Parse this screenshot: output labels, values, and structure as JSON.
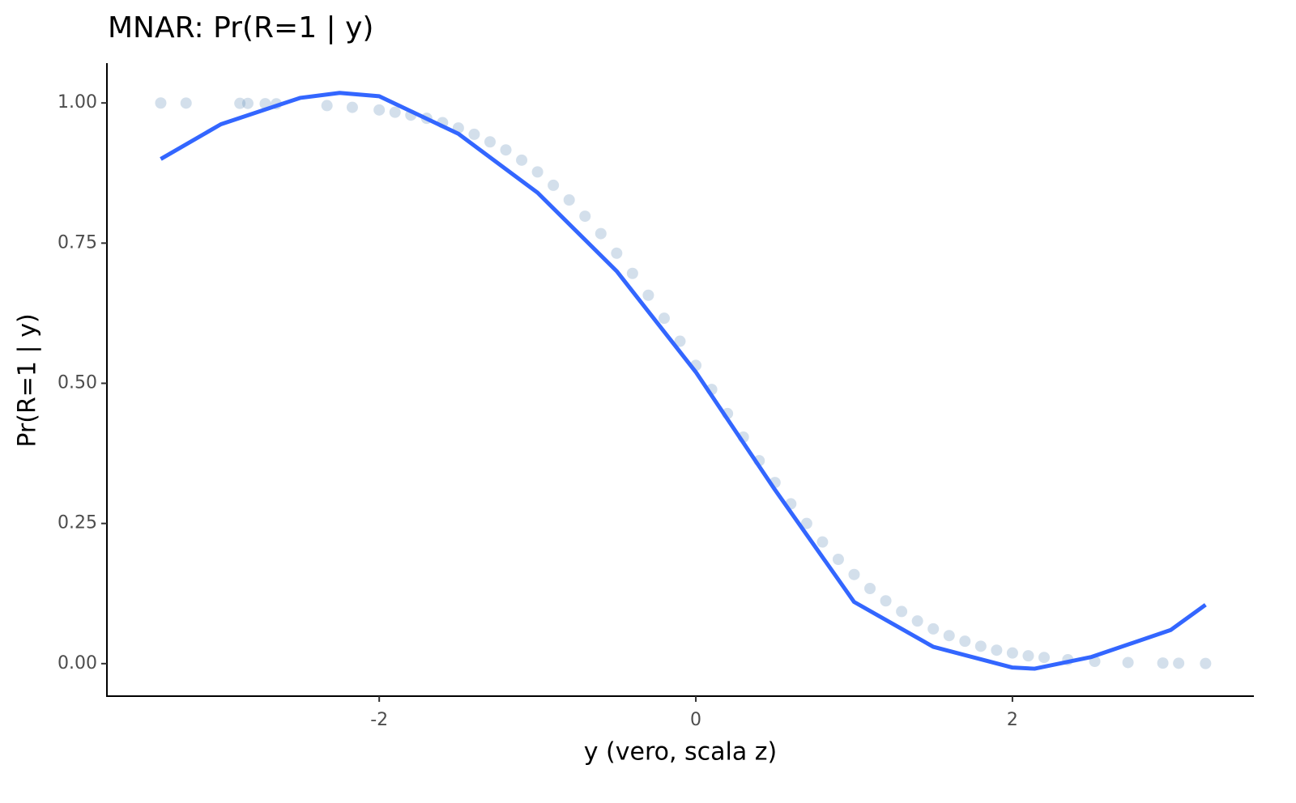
{
  "chart_data": {
    "type": "scatter",
    "title": "MNAR: Pr(R=1 | y)",
    "x_label": "y (vero, scala z)",
    "y_label": "Pr(R=1 | y)",
    "xlim": [
      -3.72,
      3.52
    ],
    "xticks": [
      -2,
      0,
      2
    ],
    "ylim": [
      -0.058,
      1.071
    ],
    "yticks": [
      {
        "value": 0,
        "label": "0.00"
      },
      {
        "value": 0.25,
        "label": "0.25"
      },
      {
        "value": 0.5,
        "label": "0.50"
      },
      {
        "value": 0.75,
        "label": "0.75"
      },
      {
        "value": 1,
        "label": "1.00"
      }
    ],
    "grid": false,
    "series": [
      {
        "type": "scatter",
        "color": "#4f7fb0",
        "x": [
          -3.38,
          -3.22,
          -2.88,
          -2.83,
          -2.72,
          -2.65,
          -2.33,
          -2.17,
          -2.0,
          -1.9,
          -1.8,
          -1.7,
          -1.6,
          -1.5,
          -1.4,
          -1.3,
          -1.2,
          -1.1,
          -1.0,
          -0.9,
          -0.8,
          -0.7,
          -0.6,
          -0.5,
          -0.4,
          -0.3,
          -0.2,
          -0.1,
          0,
          0.1,
          0.2,
          0.3,
          0.4,
          0.5,
          0.6,
          0.7,
          0.8,
          0.9,
          1.0,
          1.1,
          1.2,
          1.3,
          1.4,
          1.5,
          1.6,
          1.7,
          1.8,
          1.9,
          2.0,
          2.1,
          2.2,
          2.35,
          2.52,
          2.73,
          2.95,
          3.05,
          3.22
        ],
        "values": [
          0.9999,
          0.9998,
          0.9993,
          0.9992,
          0.9987,
          0.9984,
          0.9953,
          0.9922,
          0.9875,
          0.9834,
          0.9783,
          0.9726,
          0.9649,
          0.9554,
          0.9441,
          0.9306,
          0.9162,
          0.898,
          0.877,
          0.8531,
          0.827,
          0.798,
          0.767,
          0.732,
          0.696,
          0.657,
          0.616,
          0.575,
          0.532,
          0.489,
          0.446,
          0.404,
          0.362,
          0.323,
          0.285,
          0.25,
          0.217,
          0.186,
          0.159,
          0.134,
          0.112,
          0.093,
          0.076,
          0.062,
          0.05,
          0.04,
          0.031,
          0.024,
          0.019,
          0.014,
          0.011,
          0.007,
          0.004,
          0.002,
          0.001,
          0.0007,
          0.0003
        ]
      },
      {
        "type": "line",
        "color": "#3366ff",
        "x": [
          -3.38,
          -3.0,
          -2.5,
          -2.25,
          -2.0,
          -1.5,
          -1.0,
          -0.5,
          0,
          0.5,
          1.0,
          1.5,
          2.0,
          2.14,
          2.5,
          3.0,
          3.22
        ],
        "values": [
          0.9,
          0.962,
          1.009,
          1.018,
          1.012,
          0.945,
          0.84,
          0.7,
          0.52,
          0.31,
          0.11,
          0.03,
          -0.007,
          -0.009,
          0.012,
          0.06,
          0.105
        ]
      }
    ]
  }
}
